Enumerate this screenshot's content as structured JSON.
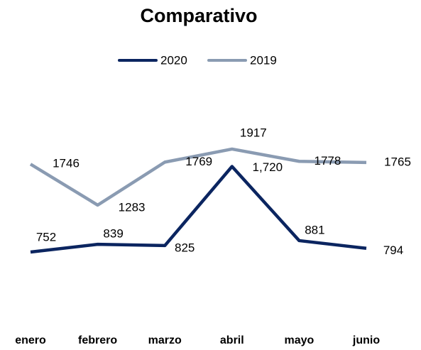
{
  "chart_data": {
    "type": "line",
    "title": "Comparativo",
    "categories": [
      "enero",
      "febrero",
      "marzo",
      "abril",
      "mayo",
      "junio"
    ],
    "series": [
      {
        "name": "2020",
        "color": "#0b2560",
        "values": [
          752,
          839,
          825,
          1720,
          881,
          794
        ],
        "value_labels": [
          "752",
          "839",
          "825",
          "1,720",
          "881",
          "794"
        ]
      },
      {
        "name": "2019",
        "color": "#8a9bb2",
        "values": [
          1746,
          1283,
          1769,
          1917,
          1778,
          1765
        ]
      }
    ],
    "ylim": [
      0,
      2500
    ],
    "legend": "top"
  }
}
